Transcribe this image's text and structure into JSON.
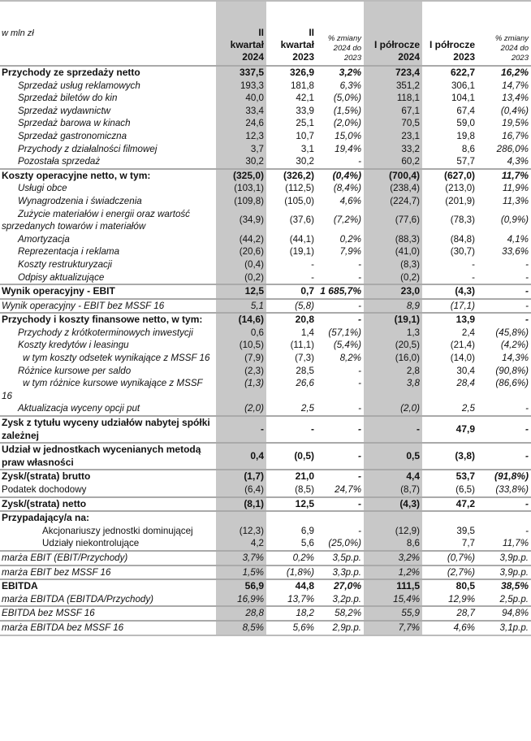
{
  "header": {
    "unit": "w mln zł",
    "columns": [
      [
        "II",
        "kwartał",
        "2024"
      ],
      [
        "II",
        "kwartał",
        "2023"
      ],
      [
        "% zmiany",
        "2024 do",
        "2023"
      ],
      [
        "I półrocze",
        "2024"
      ],
      [
        "I półrocze",
        "2023"
      ],
      [
        "% zmiany",
        "2024 do",
        "2023"
      ]
    ]
  },
  "colors": {
    "shaded_column": "#c8c8c8",
    "separator": "#aaaaaa"
  },
  "rows": [
    {
      "label": "Przychody ze sprzedaży netto",
      "values": [
        "337,5",
        "326,9",
        "3,2%",
        "723,4",
        "622,7",
        "16,2%"
      ],
      "style": "bold sep"
    },
    {
      "label": "Sprzedaż usług reklamowych",
      "values": [
        "193,3",
        "181,8",
        "6,3%",
        "351,2",
        "306,1",
        "14,7%"
      ],
      "style": "sub"
    },
    {
      "label": "Sprzedaż biletów do kin",
      "values": [
        "40,0",
        "42,1",
        "(5,0%)",
        "118,1",
        "104,1",
        "13,4%"
      ],
      "style": "sub"
    },
    {
      "label": "Sprzedaż wydawnictw",
      "values": [
        "33,4",
        "33,9",
        "(1,5%)",
        "67,1",
        "67,4",
        "(0,4%)"
      ],
      "style": "sub"
    },
    {
      "label": "Sprzedaż barowa w kinach",
      "values": [
        "24,6",
        "25,1",
        "(2,0%)",
        "70,5",
        "59,0",
        "19,5%"
      ],
      "style": "sub"
    },
    {
      "label": "Sprzedaż gastronomiczna",
      "values": [
        "12,3",
        "10,7",
        "15,0%",
        "23,1",
        "19,8",
        "16,7%"
      ],
      "style": "sub"
    },
    {
      "label": "Przychody z działalności filmowej",
      "values": [
        "3,7",
        "3,1",
        "19,4%",
        "33,2",
        "8,6",
        "286,0%"
      ],
      "style": "sub"
    },
    {
      "label": "Pozostała sprzedaż",
      "values": [
        "30,2",
        "30,2",
        "-",
        "60,2",
        "57,7",
        "4,3%"
      ],
      "style": "sub"
    },
    {
      "label": "Koszty operacyjne netto, w tym:",
      "values": [
        "(325,0)",
        "(326,2)",
        "(0,4%)",
        "(700,4)",
        "(627,0)",
        "11,7%"
      ],
      "style": "bold sep"
    },
    {
      "label": "Usługi obce",
      "values": [
        "(103,1)",
        "(112,5)",
        "(8,4%)",
        "(238,4)",
        "(213,0)",
        "11,9%"
      ],
      "style": "sub"
    },
    {
      "label": "Wynagrodzenia i świadczenia",
      "values": [
        "(109,8)",
        "(105,0)",
        "4,6%",
        "(224,7)",
        "(201,9)",
        "11,3%"
      ],
      "style": "sub"
    },
    {
      "label": "Zużycie materiałów i energii oraz wartość sprzedanych towarów i materiałów",
      "values": [
        "(34,9)",
        "(37,6)",
        "(7,2%)",
        "(77,6)",
        "(78,3)",
        "(0,9%)"
      ],
      "style": "sub mid"
    },
    {
      "label": "Amortyzacja",
      "values": [
        "(44,2)",
        "(44,1)",
        "0,2%",
        "(88,3)",
        "(84,8)",
        "4,1%"
      ],
      "style": "sub"
    },
    {
      "label": "Reprezentacja i reklama",
      "values": [
        "(20,6)",
        "(19,1)",
        "7,9%",
        "(41,0)",
        "(30,7)",
        "33,6%"
      ],
      "style": "sub"
    },
    {
      "label": "Koszty restrukturyzacji",
      "values": [
        "(0,4)",
        "-",
        "-",
        "(8,3)",
        "-",
        "-"
      ],
      "style": "sub"
    },
    {
      "label": "Odpisy aktualizujące",
      "values": [
        "(0,2)",
        "-",
        "-",
        "(0,2)",
        "-",
        "-"
      ],
      "style": "sub"
    },
    {
      "label": "Wynik operacyjny - EBIT",
      "values": [
        "12,5",
        "0,7",
        "1 685,7%",
        "23,0",
        "(4,3)",
        "-"
      ],
      "style": "bold sep"
    },
    {
      "label": "Wynik operacyjny - EBIT bez MSSF 16",
      "values": [
        "5,1",
        "(5,8)",
        "-",
        "8,9",
        "(17,1)",
        "-"
      ],
      "style": "ital vi sep"
    },
    {
      "label": "Przychody i koszty finansowe netto, w tym:",
      "values": [
        "(14,6)",
        "20,8",
        "-",
        "(19,1)",
        "13,9",
        "-"
      ],
      "style": "bold sep"
    },
    {
      "label": "Przychody z krótkoterminowych inwestycji",
      "values": [
        "0,6",
        "1,4",
        "(57,1%)",
        "1,3",
        "2,4",
        "(45,8%)"
      ],
      "style": "sub"
    },
    {
      "label": "Koszty kredytów i leasingu",
      "values": [
        "(10,5)",
        "(11,1)",
        "(5,4%)",
        "(20,5)",
        "(21,4)",
        "(4,2%)"
      ],
      "style": "sub"
    },
    {
      "label": "w tym koszty odsetek wynikające z MSSF 16",
      "values": [
        "(7,9)",
        "(7,3)",
        "8,2%",
        "(16,0)",
        "(14,0)",
        "14,3%"
      ],
      "style": "sub3 bot"
    },
    {
      "label": "Różnice kursowe per saldo",
      "values": [
        "(2,3)",
        "28,5",
        "-",
        "2,8",
        "30,4",
        "(90,8%)"
      ],
      "style": "sub"
    },
    {
      "label": "w tym różnice kursowe wynikające z MSSF 16",
      "values": [
        "(1,3)",
        "26,6",
        "-",
        "3,8",
        "28,4",
        "(86,6%)"
      ],
      "style": "sub3 vi"
    },
    {
      "label": "Aktualizacja wyceny opcji put",
      "values": [
        "(2,0)",
        "2,5",
        "-",
        "(2,0)",
        "2,5",
        "-"
      ],
      "style": "sub vi"
    },
    {
      "label": "Zysk z tytułu wyceny udziałów nabytej spółki zależnej",
      "values": [
        "-",
        "-",
        "-",
        "-",
        "47,9",
        "-"
      ],
      "style": "bold sep mid"
    },
    {
      "label": "Udział w jednostkach wycenianych metodą praw własności",
      "values": [
        "0,4",
        "(0,5)",
        "-",
        "0,5",
        "(3,8)",
        "-"
      ],
      "style": "bold sep mid"
    },
    {
      "label": "Zysk/(strata) brutto",
      "values": [
        "(1,7)",
        "21,0",
        "-",
        "4,4",
        "53,7",
        "(91,8%)"
      ],
      "style": "bold sep"
    },
    {
      "label": "Podatek dochodowy",
      "values": [
        "(6,4)",
        "(8,5)",
        "24,7%",
        "(8,7)",
        "(6,5)",
        "(33,8%)"
      ],
      "style": "plain"
    },
    {
      "label": "Zysk/(strata) netto",
      "values": [
        "(8,1)",
        "12,5",
        "-",
        "(4,3)",
        "47,2",
        "-"
      ],
      "style": "bold sep"
    },
    {
      "label": "Przypadający/a na:",
      "values": [
        "",
        "",
        "",
        "",
        "",
        ""
      ],
      "style": "bold sep"
    },
    {
      "label": "Akcjonariuszy jednostki dominującej",
      "values": [
        "(12,3)",
        "6,9",
        "-",
        "(12,9)",
        "39,5",
        "-"
      ],
      "style": "sub2"
    },
    {
      "label": "Udziały niekontrolujące",
      "values": [
        "4,2",
        "5,6",
        "(25,0%)",
        "8,6",
        "7,7",
        "11,7%"
      ],
      "style": "sub2"
    },
    {
      "label": "marża EBIT (EBIT/Przychody)",
      "values": [
        "3,7%",
        "0,2%",
        "3,5p.p.",
        "3,2%",
        "(0,7%)",
        "3,9p.p."
      ],
      "style": "ital vi sep"
    },
    {
      "label": "marża EBIT bez MSSF 16",
      "values": [
        "1,5%",
        "(1,8%)",
        "3,3p.p.",
        "1,2%",
        "(2,7%)",
        "3,9p.p."
      ],
      "style": "ital vi sep"
    },
    {
      "label": "EBITDA",
      "values": [
        "56,9",
        "44,8",
        "27,0%",
        "111,5",
        "80,5",
        "38,5%"
      ],
      "style": "bold sep"
    },
    {
      "label": "marża EBITDA (EBITDA/Przychody)",
      "values": [
        "16,9%",
        "13,7%",
        "3,2p.p.",
        "15,4%",
        "12,9%",
        "2,5p.p."
      ],
      "style": "vi lbln"
    },
    {
      "label": "EBITDA bez MSSF 16",
      "values": [
        "28,8",
        "18,2",
        "58,2%",
        "55,9",
        "28,7",
        "94,8%"
      ],
      "style": "ital vi sep"
    },
    {
      "label": "marża EBITDA bez MSSF 16",
      "values": [
        "8,5%",
        "5,6%",
        "2,9p.p.",
        "7,7%",
        "4,6%",
        "3,1p.p."
      ],
      "style": "ital vi sep lastline"
    }
  ]
}
